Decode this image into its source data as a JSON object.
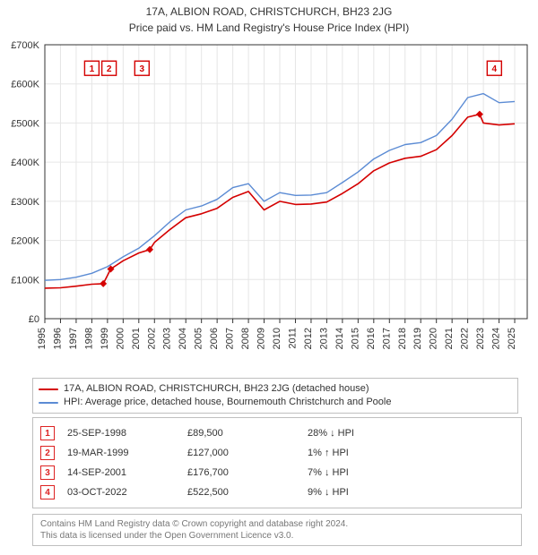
{
  "title": "17A, ALBION ROAD, CHRISTCHURCH, BH23 2JG",
  "subtitle": "Price paid vs. HM Land Registry's House Price Index (HPI)",
  "chart": {
    "type": "line",
    "plot_bg": "#ffffff",
    "grid_color": "#e6e6e6",
    "axis_color": "#333333",
    "x": {
      "min": 1995,
      "max": 2025.8,
      "ticks": [
        1995,
        1996,
        1997,
        1998,
        1999,
        2000,
        2001,
        2002,
        2003,
        2004,
        2005,
        2006,
        2007,
        2008,
        2009,
        2010,
        2011,
        2012,
        2013,
        2014,
        2015,
        2016,
        2017,
        2018,
        2019,
        2020,
        2021,
        2022,
        2023,
        2024,
        2025
      ]
    },
    "y": {
      "min": 0,
      "max": 700000,
      "ticks": [
        0,
        100000,
        200000,
        300000,
        400000,
        500000,
        600000,
        700000
      ],
      "tick_labels": [
        "£0",
        "£100K",
        "£200K",
        "£300K",
        "£400K",
        "£500K",
        "£600K",
        "£700K"
      ]
    },
    "series": [
      {
        "name": "17A, ALBION ROAD, CHRISTCHURCH, BH23 2JG (detached house)",
        "color": "#d40000",
        "width": 1.6,
        "points": [
          [
            1995,
            78000
          ],
          [
            1996,
            79000
          ],
          [
            1997,
            83000
          ],
          [
            1998,
            88000
          ],
          [
            1998.73,
            89500
          ],
          [
            1999.21,
            127000
          ],
          [
            2000,
            148000
          ],
          [
            2001,
            168000
          ],
          [
            2001.7,
            176700
          ],
          [
            2002,
            195000
          ],
          [
            2003,
            228000
          ],
          [
            2004,
            258000
          ],
          [
            2005,
            268000
          ],
          [
            2006,
            282000
          ],
          [
            2007,
            310000
          ],
          [
            2008,
            325000
          ],
          [
            2009,
            278000
          ],
          [
            2010,
            300000
          ],
          [
            2011,
            292000
          ],
          [
            2012,
            293000
          ],
          [
            2013,
            298000
          ],
          [
            2014,
            320000
          ],
          [
            2015,
            345000
          ],
          [
            2016,
            378000
          ],
          [
            2017,
            398000
          ],
          [
            2018,
            410000
          ],
          [
            2019,
            415000
          ],
          [
            2020,
            432000
          ],
          [
            2021,
            468000
          ],
          [
            2022,
            515000
          ],
          [
            2022.76,
            522500
          ],
          [
            2023,
            500000
          ],
          [
            2024,
            495000
          ],
          [
            2025,
            498000
          ]
        ]
      },
      {
        "name": "HPI: Average price, detached house, Bournemouth Christchurch and Poole",
        "color": "#5b8bd4",
        "width": 1.4,
        "points": [
          [
            1995,
            98000
          ],
          [
            1996,
            100000
          ],
          [
            1997,
            106000
          ],
          [
            1998,
            116000
          ],
          [
            1999,
            133000
          ],
          [
            2000,
            158000
          ],
          [
            2001,
            180000
          ],
          [
            2002,
            212000
          ],
          [
            2003,
            248000
          ],
          [
            2004,
            278000
          ],
          [
            2005,
            288000
          ],
          [
            2006,
            305000
          ],
          [
            2007,
            335000
          ],
          [
            2008,
            345000
          ],
          [
            2009,
            300000
          ],
          [
            2010,
            322000
          ],
          [
            2011,
            315000
          ],
          [
            2012,
            316000
          ],
          [
            2013,
            322000
          ],
          [
            2014,
            348000
          ],
          [
            2015,
            375000
          ],
          [
            2016,
            408000
          ],
          [
            2017,
            430000
          ],
          [
            2018,
            445000
          ],
          [
            2019,
            450000
          ],
          [
            2020,
            468000
          ],
          [
            2021,
            510000
          ],
          [
            2022,
            565000
          ],
          [
            2023,
            575000
          ],
          [
            2024,
            552000
          ],
          [
            2025,
            555000
          ]
        ]
      }
    ],
    "markers": [
      {
        "n": "1",
        "x": 1998.73,
        "y": 89500,
        "label_x": 1998.0,
        "label_y": 640000
      },
      {
        "n": "2",
        "x": 1999.21,
        "y": 127000,
        "label_x": 1999.1,
        "label_y": 640000
      },
      {
        "n": "3",
        "x": 2001.7,
        "y": 176700,
        "label_x": 2001.2,
        "label_y": 640000
      },
      {
        "n": "4",
        "x": 2022.76,
        "y": 522500,
        "label_x": 2023.7,
        "label_y": 640000
      }
    ],
    "marker_fill": "#d40000",
    "marker_box_stroke": "#d40000"
  },
  "legend": {
    "items": [
      {
        "color": "#d40000",
        "label": "17A, ALBION ROAD, CHRISTCHURCH, BH23 2JG (detached house)"
      },
      {
        "color": "#5b8bd4",
        "label": "HPI: Average price, detached house, Bournemouth Christchurch and Poole"
      }
    ]
  },
  "sales": [
    {
      "n": "1",
      "date": "25-SEP-1998",
      "price": "£89,500",
      "hpi": "28% ↓ HPI"
    },
    {
      "n": "2",
      "date": "19-MAR-1999",
      "price": "£127,000",
      "hpi": "1% ↑ HPI"
    },
    {
      "n": "3",
      "date": "14-SEP-2001",
      "price": "£176,700",
      "hpi": "7% ↓ HPI"
    },
    {
      "n": "4",
      "date": "03-OCT-2022",
      "price": "£522,500",
      "hpi": "9% ↓ HPI"
    }
  ],
  "attrib": {
    "line1": "Contains HM Land Registry data © Crown copyright and database right 2024.",
    "line2": "This data is licensed under the Open Government Licence v3.0."
  }
}
